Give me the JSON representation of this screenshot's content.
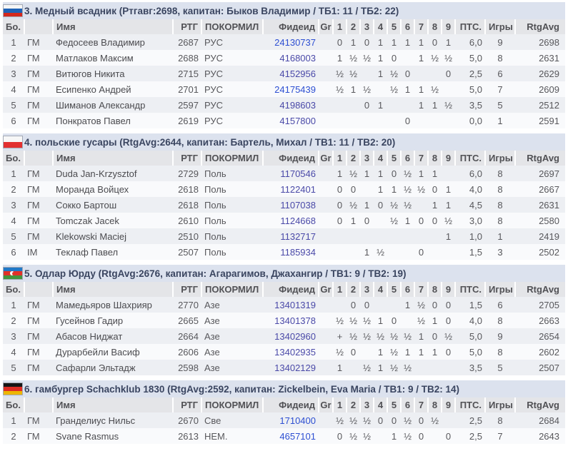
{
  "colors": {
    "band_bg": "#dce2ee",
    "header_bg": "#e4e5e8",
    "row_odd": "#edeff3",
    "row_even": "#f9fafc",
    "link_normal": "#4a49a8",
    "link_bright": "#2d4fd2"
  },
  "table_header": {
    "board": "Бо.",
    "title": "",
    "name": "Имя",
    "rating": "РТГ",
    "fed": "ПОКОРМИЛ",
    "fide": "Фидеид",
    "gr": "Gr",
    "rounds": [
      "1",
      "2",
      "3",
      "4",
      "5",
      "6",
      "7",
      "8",
      "9"
    ],
    "pts": "ПТС.",
    "games": "Игры",
    "rtgavg": "RtgAvg"
  },
  "teams": [
    {
      "flag": "russia",
      "flag_stripes": [
        "#f6f6f6",
        "#1e62b6",
        "#d3281e"
      ],
      "title": "3. Медный всадник (Ртгавг:2698, капитан: Быков Владимир / ТБ1: 11 / ТБ2: 22)",
      "players": [
        {
          "board": "1",
          "title": "ГМ",
          "name": "Федосеев Владимир",
          "rating": "2687",
          "fed": "РУС",
          "fide_id": "24130737",
          "fide_color": "#2d4fd2",
          "rounds": [
            "0",
            "1",
            "0",
            "1",
            "1",
            "1",
            "1",
            "0",
            "1"
          ],
          "pts": "6,0",
          "games": "9",
          "rtg_avg": "2698"
        },
        {
          "board": "2",
          "title": "ГМ",
          "name": "Матлаков Максим",
          "rating": "2688",
          "fed": "РУС",
          "fide_id": "4168003",
          "fide_color": "#4a49a8",
          "rounds": [
            "1",
            "½",
            "½",
            "1",
            "0",
            "",
            "1",
            "½",
            "½"
          ],
          "pts": "5,0",
          "games": "8",
          "rtg_avg": "2631"
        },
        {
          "board": "3",
          "title": "ГМ",
          "name": "Витюгов Никита",
          "rating": "2715",
          "fed": "РУС",
          "fide_id": "4152956",
          "fide_color": "#4a49a8",
          "rounds": [
            "½",
            "½",
            "",
            "1",
            "½",
            "0",
            "",
            "",
            "0"
          ],
          "pts": "2,5",
          "games": "6",
          "rtg_avg": "2629"
        },
        {
          "board": "4",
          "title": "ГМ",
          "name": "Есипенко Андрей",
          "rating": "2701",
          "fed": "РУС",
          "fide_id": "24175439",
          "fide_color": "#2d4fd2",
          "rounds": [
            "½",
            "1",
            "½",
            "",
            "½",
            "1",
            "1",
            "½",
            ""
          ],
          "pts": "5,0",
          "games": "7",
          "rtg_avg": "2609"
        },
        {
          "board": "5",
          "title": "ГМ",
          "name": "Шиманов Александр",
          "rating": "2597",
          "fed": "РУС",
          "fide_id": "4198603",
          "fide_color": "#4a49a8",
          "rounds": [
            "",
            "",
            "0",
            "1",
            "",
            "",
            "1",
            "1",
            "½"
          ],
          "pts": "3,5",
          "games": "5",
          "rtg_avg": "2512"
        },
        {
          "board": "6",
          "title": "ГМ",
          "name": "Понкратов Павел",
          "rating": "2619",
          "fed": "РУС",
          "fide_id": "4157800",
          "fide_color": "#4a49a8",
          "rounds": [
            "",
            "",
            "",
            "",
            "",
            "0",
            "",
            "",
            ""
          ],
          "pts": "0,0",
          "games": "1",
          "rtg_avg": "2591"
        }
      ]
    },
    {
      "flag": "poland",
      "flag_stripes": [
        "#f7f7f7",
        "#e23030"
      ],
      "title": "4. польские гусары (RtgAvg:2644, капитан: Бартель, Михал / ТВ1: 11 / ТВ2: 20)",
      "players": [
        {
          "board": "1",
          "title": "ГМ",
          "name": "Duda Jan-Krzysztof",
          "rating": "2729",
          "fed": "Поль",
          "fide_id": "1170546",
          "fide_color": "#4a49a8",
          "rounds": [
            "1",
            "½",
            "1",
            "1",
            "0",
            "½",
            "1",
            "1",
            ""
          ],
          "pts": "6,0",
          "games": "8",
          "rtg_avg": "2697"
        },
        {
          "board": "2",
          "title": "ГМ",
          "name": "Моранда Войцех",
          "rating": "2618",
          "fed": "Поль",
          "fide_id": "1122401",
          "fide_color": "#4a49a8",
          "rounds": [
            "0",
            "0",
            "",
            "1",
            "1",
            "½",
            "½",
            "0",
            "1"
          ],
          "pts": "4,0",
          "games": "8",
          "rtg_avg": "2667"
        },
        {
          "board": "3",
          "title": "ГМ",
          "name": "Сокко Бартош",
          "rating": "2618",
          "fed": "Поль",
          "fide_id": "1107038",
          "fide_color": "#4a49a8",
          "rounds": [
            "0",
            "½",
            "1",
            "0",
            "½",
            "½",
            "",
            "1",
            "1"
          ],
          "pts": "4,5",
          "games": "8",
          "rtg_avg": "2631"
        },
        {
          "board": "4",
          "title": "ГМ",
          "name": "Tomczak Jacek",
          "rating": "2610",
          "fed": "Поль",
          "fide_id": "1124668",
          "fide_color": "#4a49a8",
          "rounds": [
            "0",
            "1",
            "0",
            "",
            "½",
            "1",
            "0",
            "0",
            "½"
          ],
          "pts": "3,0",
          "games": "8",
          "rtg_avg": "2580"
        },
        {
          "board": "5",
          "title": "ГМ",
          "name": "Klekowski Maciej",
          "rating": "2510",
          "fed": "Поль",
          "fide_id": "1132717",
          "fide_color": "#4a49a8",
          "rounds": [
            "",
            "",
            "",
            "",
            "",
            "",
            "",
            "",
            "1"
          ],
          "pts": "1,0",
          "games": "1",
          "rtg_avg": "2419"
        },
        {
          "board": "6",
          "title": "IM",
          "name": "Теклаф Павел",
          "rating": "2507",
          "fed": "Поль",
          "fide_id": "1185934",
          "fide_color": "#4a49a8",
          "rounds": [
            "",
            "",
            "1",
            "½",
            "",
            "",
            "0",
            "",
            ""
          ],
          "pts": "1,5",
          "games": "3",
          "rtg_avg": "2502"
        }
      ]
    },
    {
      "flag": "azerbaijan",
      "flag_stripes": [
        "#2079c8",
        "#e03229",
        "#42953d"
      ],
      "flag_emblem": "crescent",
      "title": "5. Одлар Юрду (RtgAvg:2676, капитан: Агарагимов, Джахангир / ТВ1: 9 / ТВ2: 19)",
      "players": [
        {
          "board": "1",
          "title": "ГМ",
          "name": "Мамедьяров Шахрияр",
          "rating": "2770",
          "fed": "Азе",
          "fide_id": "13401319",
          "fide_color": "#4a49a8",
          "rounds": [
            "",
            "0",
            "0",
            "",
            "",
            "1",
            "½",
            "0",
            "0"
          ],
          "pts": "1,5",
          "games": "6",
          "rtg_avg": "2705"
        },
        {
          "board": "2",
          "title": "ГМ",
          "name": "Гусейнов Гадир",
          "rating": "2665",
          "fed": "Азе",
          "fide_id": "13401378",
          "fide_color": "#4a49a8",
          "rounds": [
            "½",
            "½",
            "½",
            "1",
            "0",
            "",
            "½",
            "1",
            "0"
          ],
          "pts": "4,0",
          "games": "8",
          "rtg_avg": "2663"
        },
        {
          "board": "3",
          "title": "ГМ",
          "name": "Абасов Ниджат",
          "rating": "2664",
          "fed": "Азе",
          "fide_id": "13402960",
          "fide_color": "#4a49a8",
          "rounds": [
            "+",
            "½",
            "½",
            "½",
            "½",
            "½",
            "1",
            "0",
            "½"
          ],
          "pts": "5,0",
          "games": "9",
          "rtg_avg": "2654"
        },
        {
          "board": "4",
          "title": "ГМ",
          "name": "Дурарбейли Васиф",
          "rating": "2606",
          "fed": "Азе",
          "fide_id": "13402935",
          "fide_color": "#4a49a8",
          "rounds": [
            "½",
            "0",
            "",
            "1",
            "½",
            "1",
            "1",
            "1",
            "0"
          ],
          "pts": "5,0",
          "games": "8",
          "rtg_avg": "2602"
        },
        {
          "board": "5",
          "title": "ГМ",
          "name": "Сафарли Эльтадж",
          "rating": "2598",
          "fed": "Азе",
          "fide_id": "13402129",
          "fide_color": "#4a49a8",
          "rounds": [
            "1",
            "",
            "½",
            "1",
            "½",
            "½",
            "",
            "",
            ""
          ],
          "pts": "3,5",
          "games": "5",
          "rtg_avg": "2507"
        }
      ]
    },
    {
      "flag": "germany",
      "flag_stripes": [
        "#161616",
        "#dd2c24",
        "#edb500"
      ],
      "title": "6. гамбургер Schachklub 1830 (RtgAvg:2592, капитан: Zickelbein, Eva Maria / ТВ1: 9 / ТВ2: 14)",
      "players": [
        {
          "board": "1",
          "title": "ГМ",
          "name": "Гранделиус Нильс",
          "rating": "2670",
          "fed": "Све",
          "fide_id": "1710400",
          "fide_color": "#2d4fd2",
          "rounds": [
            "½",
            "½",
            "½",
            "0",
            "0",
            "½",
            "0",
            "½",
            ""
          ],
          "pts": "2,5",
          "games": "8",
          "rtg_avg": "2684"
        },
        {
          "board": "2",
          "title": "ГМ",
          "name": "Svane Rasmus",
          "rating": "2613",
          "fed": "НЕМ.",
          "fide_id": "4657101",
          "fide_color": "#2d4fd2",
          "rounds": [
            "0",
            "½",
            "½",
            "",
            "1",
            "½",
            "0",
            "",
            "0"
          ],
          "pts": "2,5",
          "games": "7",
          "rtg_avg": "2643"
        }
      ]
    }
  ]
}
